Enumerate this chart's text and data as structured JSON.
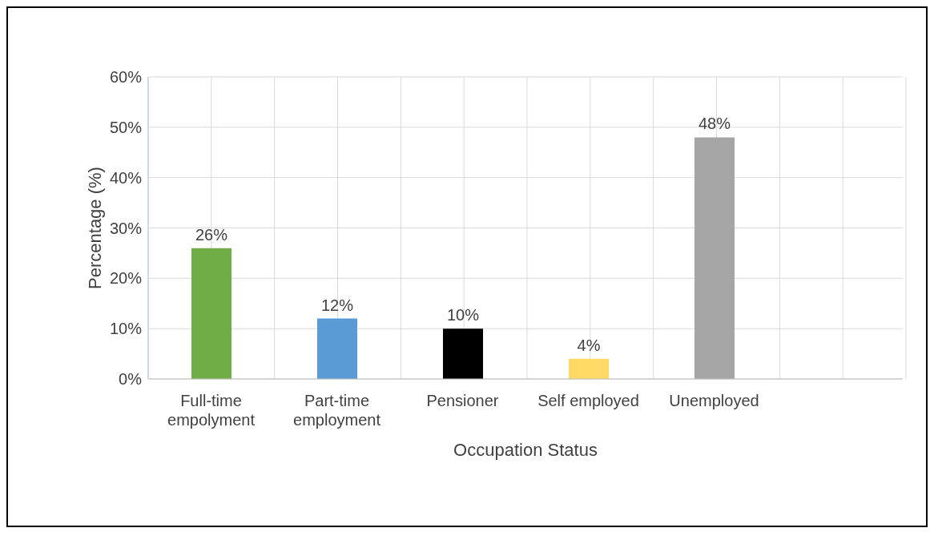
{
  "chart_data": {
    "type": "bar",
    "xlabel": "Occupation Status",
    "ylabel": "Percentage (%)",
    "categories": [
      "Full-time empolyment",
      "Part-time employment",
      "Pensioner",
      "Self employed",
      "Unemployed",
      null
    ],
    "values": [
      26,
      12,
      10,
      4,
      48,
      null
    ],
    "colors": [
      "#70ad47",
      "#5b9bd5",
      "#000000",
      "#ffd966",
      "#a5a5a5",
      "#a5a5a5"
    ],
    "value_labels": [
      "26%",
      "12%",
      "10%",
      "4%",
      "48%",
      null
    ],
    "ylim": [
      0,
      60
    ],
    "yticks": [
      {
        "value": 0,
        "label": "0%"
      },
      {
        "value": 10,
        "label": "10%"
      },
      {
        "value": 20,
        "label": "20%"
      },
      {
        "value": 30,
        "label": "30%"
      },
      {
        "value": 40,
        "label": "40%"
      },
      {
        "value": 50,
        "label": "50%"
      },
      {
        "value": 60,
        "label": "60%"
      }
    ],
    "grid": true
  }
}
